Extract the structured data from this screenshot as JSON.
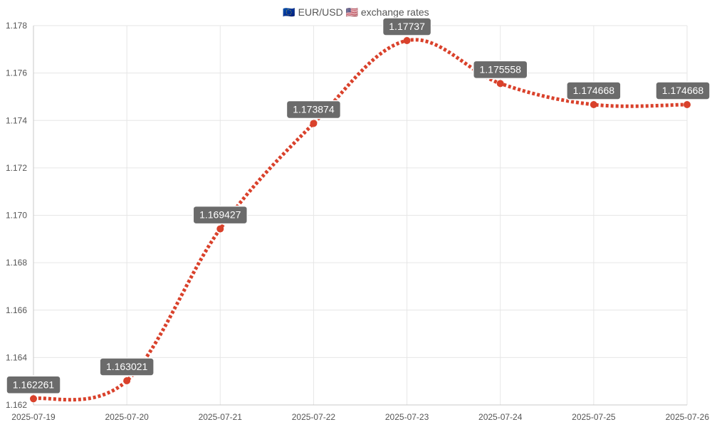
{
  "chart_data": {
    "type": "line",
    "title": "🇪🇺 EUR/USD 🇺🇸 exchange rates",
    "x": [
      "2025-07-19",
      "2025-07-20",
      "2025-07-21",
      "2025-07-22",
      "2025-07-23",
      "2025-07-24",
      "2025-07-25",
      "2025-07-26"
    ],
    "series": [
      {
        "values": [
          1.162261,
          1.163021,
          1.169427,
          1.173874,
          1.17737,
          1.175558,
          1.174668,
          1.174668
        ],
        "labels": [
          "1.162261",
          "1.163021",
          "1.169427",
          "1.173874",
          "1.17737",
          "1.175558",
          "1.174668",
          "1.174668"
        ]
      }
    ],
    "ylim": [
      1.162,
      1.178
    ],
    "yticks": [
      "1.162",
      "1.164",
      "1.166",
      "1.168",
      "1.170",
      "1.172",
      "1.174",
      "1.176",
      "1.178"
    ],
    "grid": true,
    "legend": "none",
    "colors": {
      "line": "#d9412b",
      "label_bg": "#6b6b6b"
    }
  }
}
